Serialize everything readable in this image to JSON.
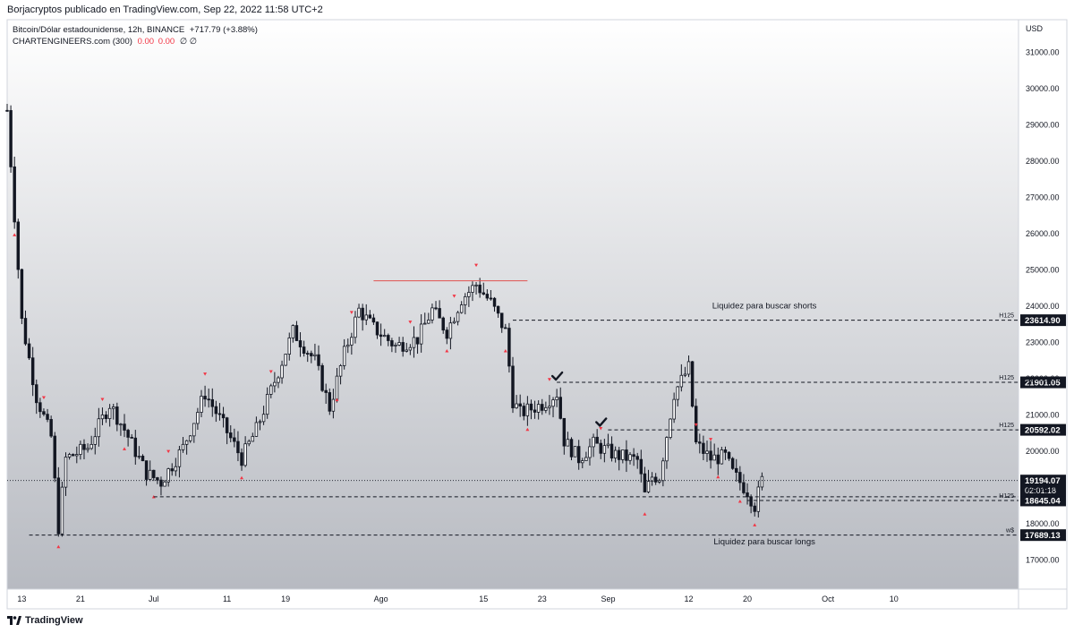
{
  "header": {
    "published_by": "Borjacryptos publicado en TradingView.com, Sep 22, 2022 11:58 UTC+2"
  },
  "legend": {
    "symbol_line": "Bitcoin/Dólar estadounidense, 12h, BINANCE",
    "change": "+717.79 (+3.88%)",
    "indicator_name": "CHARTENGINEERS.com (300)",
    "indicator_v1": "0.00",
    "indicator_v2": "0.00",
    "indicator_v3": "∅ ∅"
  },
  "footer": {
    "brand": "TradingView"
  },
  "colors": {
    "background_top": "#ffffff",
    "background_bottom": "#b7bac1",
    "candle": "#131722",
    "resistance_line": "#e0524f",
    "marker_red": "#f23645",
    "marker_black": "#131722"
  },
  "chart_data": {
    "type": "candlestick",
    "currency": "USD",
    "ylim": [
      16200,
      31900
    ],
    "y_ticks": [
      17000,
      18000,
      19000,
      20000,
      21000,
      22000,
      23000,
      24000,
      25000,
      26000,
      27000,
      28000,
      29000,
      30000,
      31000
    ],
    "y_tick_labels": [
      "17000.00",
      "18000.00",
      "19000.00",
      "20000.00",
      "21000.00",
      "22000.00",
      "23000.00",
      "24000.00",
      "25000.00",
      "26000.00",
      "27000.00",
      "28000.00",
      "29000.00",
      "30000.00",
      "31000.00"
    ],
    "x_start": "2022-06-11",
    "x_end": "2022-10-27",
    "x_ticks": [
      {
        "date": "2022-06-13",
        "label": "13"
      },
      {
        "date": "2022-06-21",
        "label": "21"
      },
      {
        "date": "2022-07-01",
        "label": "Jul"
      },
      {
        "date": "2022-07-11",
        "label": "11"
      },
      {
        "date": "2022-07-19",
        "label": "19"
      },
      {
        "date": "2022-08-01",
        "label": "Ago"
      },
      {
        "date": "2022-08-15",
        "label": "15"
      },
      {
        "date": "2022-08-23",
        "label": "23"
      },
      {
        "date": "2022-09-01",
        "label": "Sep"
      },
      {
        "date": "2022-09-12",
        "label": "12"
      },
      {
        "date": "2022-09-20",
        "label": "20"
      },
      {
        "date": "2022-10-01",
        "label": "Oct"
      },
      {
        "date": "2022-10-10",
        "label": "10"
      }
    ],
    "close_anchors": [
      [
        "2022-06-11",
        29400
      ],
      [
        "2022-06-13",
        23600
      ],
      [
        "2022-06-15",
        21500
      ],
      [
        "2022-06-17",
        20400
      ],
      [
        "2022-06-18",
        17900
      ],
      [
        "2022-06-19",
        19800
      ],
      [
        "2022-06-22",
        20100
      ],
      [
        "2022-06-25",
        21300
      ],
      [
        "2022-06-27",
        20600
      ],
      [
        "2022-06-30",
        19400
      ],
      [
        "2022-07-02",
        19150
      ],
      [
        "2022-07-05",
        20100
      ],
      [
        "2022-07-08",
        21600
      ],
      [
        "2022-07-10",
        20900
      ],
      [
        "2022-07-13",
        19800
      ],
      [
        "2022-07-15",
        20600
      ],
      [
        "2022-07-18",
        22200
      ],
      [
        "2022-07-20",
        23300
      ],
      [
        "2022-07-23",
        22500
      ],
      [
        "2022-07-25",
        21200
      ],
      [
        "2022-07-27",
        22700
      ],
      [
        "2022-07-29",
        23900
      ],
      [
        "2022-07-31",
        23400
      ],
      [
        "2022-08-03",
        22900
      ],
      [
        "2022-08-06",
        23100
      ],
      [
        "2022-08-08",
        23900
      ],
      [
        "2022-08-10",
        23300
      ],
      [
        "2022-08-12",
        24200
      ],
      [
        "2022-08-14",
        24600
      ],
      [
        "2022-08-16",
        24100
      ],
      [
        "2022-08-18",
        23300
      ],
      [
        "2022-08-19",
        21400
      ],
      [
        "2022-08-20",
        21050
      ],
      [
        "2022-08-23",
        21300
      ],
      [
        "2022-08-25",
        21600
      ],
      [
        "2022-08-26",
        20300
      ],
      [
        "2022-08-28",
        19800
      ],
      [
        "2022-08-30",
        20200
      ],
      [
        "2022-09-02",
        19900
      ],
      [
        "2022-09-05",
        19750
      ],
      [
        "2022-09-06",
        18800
      ],
      [
        "2022-09-07",
        19300
      ],
      [
        "2022-09-08",
        19300
      ],
      [
        "2022-09-10",
        21600
      ],
      [
        "2022-09-12",
        22300
      ],
      [
        "2022-09-13",
        20200
      ],
      [
        "2022-09-15",
        19800
      ],
      [
        "2022-09-17",
        19850
      ],
      [
        "2022-09-18",
        19400
      ],
      [
        "2022-09-20",
        18900
      ],
      [
        "2022-09-21",
        18500
      ],
      [
        "2022-09-22",
        19194
      ]
    ],
    "peak_marker_dates": [
      "2022-06-16",
      "2022-06-24",
      "2022-07-03",
      "2022-07-08",
      "2022-07-17",
      "2022-07-28",
      "2022-08-05",
      "2022-08-11",
      "2022-08-14",
      "2022-08-24",
      "2022-08-31",
      "2022-09-13",
      "2022-09-15"
    ],
    "trough_marker_dates": [
      "2022-06-12",
      "2022-06-18",
      "2022-06-27",
      "2022-07-01",
      "2022-07-13",
      "2022-07-26",
      "2022-08-10",
      "2022-08-18",
      "2022-08-21",
      "2022-09-06",
      "2022-09-16",
      "2022-09-19",
      "2022-09-21"
    ],
    "resistance_line": {
      "price": 24700,
      "from": "2022-07-31",
      "to": "2022-08-21"
    },
    "levels": [
      {
        "price": 23614.9,
        "label": "23614.90",
        "tag": "H125",
        "from": "2022-08-19",
        "style": "dashed"
      },
      {
        "price": 21901.05,
        "label": "21901.05",
        "tag": "H125",
        "from": "2022-08-25",
        "style": "dashed"
      },
      {
        "price": 20592.02,
        "label": "20592.02",
        "tag": "H125",
        "from": "2022-09-01",
        "style": "dashed"
      },
      {
        "price": 18744.37,
        "label": "18744.37",
        "tag": "",
        "from": "2022-07-01",
        "style": "dashed"
      },
      {
        "price": 18645.04,
        "label": "18645.04",
        "tag": "H125",
        "from": "2022-09-20",
        "style": "dashed"
      },
      {
        "price": 17689.13,
        "label": "17689.13",
        "tag": "w$",
        "from": "2022-06-14",
        "style": "dashed"
      }
    ],
    "current_price": {
      "price": 19194.07,
      "label": "19194.07",
      "countdown": "02:01:18"
    },
    "checkmarks": [
      {
        "date": "2022-08-25",
        "price": 22050
      },
      {
        "date": "2022-08-31",
        "price": 20780
      }
    ],
    "annotations": [
      {
        "text": "Liquidez para buscar shorts",
        "date": "2022-09-15",
        "price": 23940
      },
      {
        "text": "Liquidez para buscar longs",
        "date": "2022-09-15",
        "price": 17440
      }
    ]
  }
}
